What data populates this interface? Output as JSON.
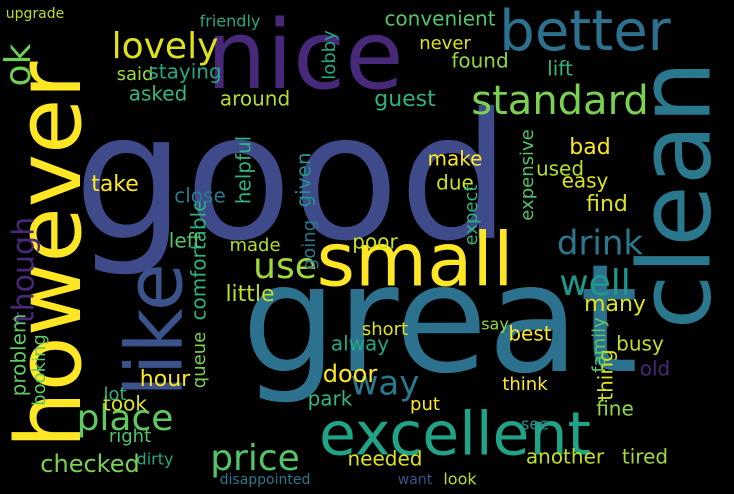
{
  "words": [
    "good",
    "great",
    "however",
    "nice",
    "clean",
    "small",
    "excellent",
    "better",
    "like",
    "standard",
    "lovely",
    "ok",
    "place",
    "price",
    "use",
    "drink",
    "well",
    "way",
    "checked",
    "though",
    "convenient",
    "said",
    "staying",
    "asked",
    "around",
    "guest",
    "found",
    "never",
    "lift",
    "lobby",
    "friendly",
    "upgrade",
    "hour",
    "little",
    "comfortable",
    "take",
    "close",
    "left",
    "made",
    "helpful",
    "given",
    "make",
    "due",
    "expect",
    "bad",
    "find",
    "used",
    "easy",
    "expensive",
    "poor",
    "going",
    "problem",
    "booking",
    "many",
    "busy",
    "old",
    "best",
    "alway",
    "door",
    "park",
    "took",
    "right",
    "fine",
    "thing",
    "family",
    "another",
    "tired",
    "needed",
    "dirty",
    "disappointed",
    "want",
    "look",
    "put",
    "see",
    "think",
    "say",
    "short",
    "queue",
    "lot"
  ]
}
